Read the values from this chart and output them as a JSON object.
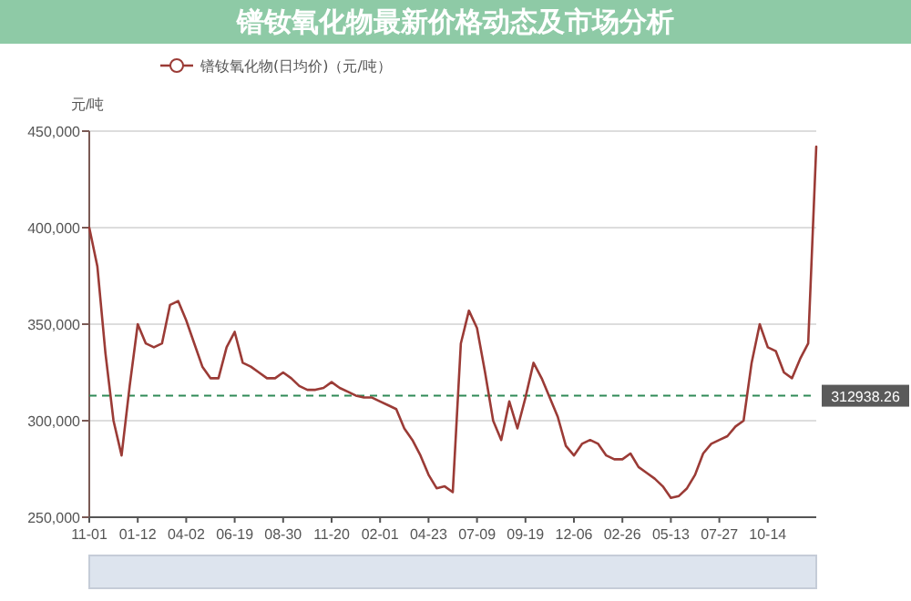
{
  "chart_data": {
    "type": "line",
    "title": "镨钕氧化物最新价格动态及市场分析",
    "ylabel": "元/吨",
    "categories": [
      "11-01",
      null,
      null,
      null,
      null,
      null,
      "01-12",
      null,
      null,
      null,
      null,
      null,
      "04-02",
      null,
      null,
      null,
      null,
      null,
      "06-19",
      null,
      null,
      null,
      null,
      null,
      "08-30",
      null,
      null,
      null,
      null,
      null,
      "11-20",
      null,
      null,
      null,
      null,
      null,
      "02-01",
      null,
      null,
      null,
      null,
      null,
      "04-23",
      null,
      null,
      null,
      null,
      null,
      "07-09",
      null,
      null,
      null,
      null,
      null,
      "09-19",
      null,
      null,
      null,
      null,
      null,
      "12-06",
      null,
      null,
      null,
      null,
      null,
      "02-26",
      null,
      null,
      null,
      null,
      null,
      "05-13",
      null,
      null,
      null,
      null,
      null,
      "07-27",
      null,
      null,
      null,
      null,
      null,
      "10-14",
      null,
      null,
      null,
      null,
      null,
      null
    ],
    "series": [
      {
        "name": "镨钕氧化物(日均价)（元/吨）",
        "color": "#9b3b36",
        "values": [
          400000,
          380000,
          335000,
          300000,
          282000,
          318000,
          350000,
          340000,
          338000,
          340000,
          360000,
          362000,
          352000,
          340000,
          328000,
          322000,
          322000,
          338000,
          346000,
          330000,
          328000,
          325000,
          322000,
          322000,
          325000,
          322000,
          318000,
          316000,
          316000,
          317000,
          320000,
          317000,
          315000,
          313000,
          312000,
          312000,
          310000,
          308000,
          306000,
          296000,
          290000,
          282000,
          272000,
          265000,
          266000,
          263000,
          340000,
          357000,
          348000,
          325000,
          300000,
          290000,
          310000,
          296000,
          312000,
          330000,
          322000,
          312000,
          302000,
          287000,
          282000,
          288000,
          290000,
          288000,
          282000,
          280000,
          280000,
          283000,
          276000,
          273000,
          270000,
          266000,
          260000,
          261000,
          265000,
          272000,
          283000,
          288000,
          290000,
          292000,
          297000,
          300000,
          330000,
          350000,
          338000,
          336000,
          325000,
          322000,
          332000,
          340000,
          442000
        ]
      }
    ],
    "ylim": [
      250000,
      450000
    ],
    "yticks": [
      {
        "value": 250000,
        "label": "250,000"
      },
      {
        "value": 300000,
        "label": "300,000"
      },
      {
        "value": 350000,
        "label": "350,000"
      },
      {
        "value": 400000,
        "label": "400,000"
      },
      {
        "value": 450000,
        "label": "450,000"
      }
    ],
    "grid": "y",
    "legend": "top",
    "ref_lines": [
      {
        "axis": "y",
        "value": 312938.26,
        "label": "312938.26",
        "color": "#2f8a57",
        "line_style": "dashed"
      }
    ]
  }
}
